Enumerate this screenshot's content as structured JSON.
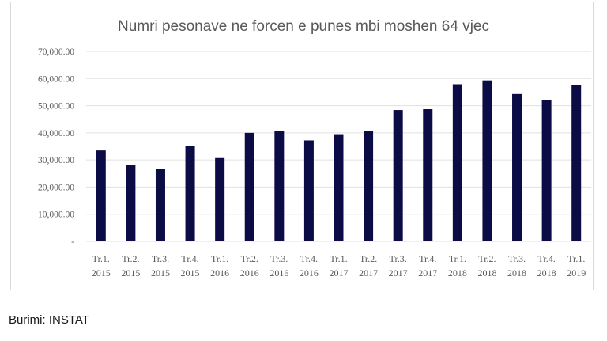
{
  "chart_data": {
    "type": "bar",
    "title": "Numri pesonave ne forcen e punes mbi moshen 64 vjec",
    "xlabel": "",
    "ylabel": "",
    "categories": [
      [
        "Tr.1.",
        "2015"
      ],
      [
        "Tr.2.",
        "2015"
      ],
      [
        "Tr.3.",
        "2015"
      ],
      [
        "Tr.4.",
        "2015"
      ],
      [
        "Tr.1.",
        "2016"
      ],
      [
        "Tr.2.",
        "2016"
      ],
      [
        "Tr.3.",
        "2016"
      ],
      [
        "Tr.4.",
        "2016"
      ],
      [
        "Tr.1.",
        "2017"
      ],
      [
        "Tr.2.",
        "2017"
      ],
      [
        "Tr.3.",
        "2017"
      ],
      [
        "Tr.4.",
        "2017"
      ],
      [
        "Tr.1.",
        "2018"
      ],
      [
        "Tr.2.",
        "2018"
      ],
      [
        "Tr.3.",
        "2018"
      ],
      [
        "Tr.4.",
        "2018"
      ],
      [
        "Tr.1.",
        "2019"
      ]
    ],
    "values": [
      33500,
      28000,
      26600,
      35200,
      30700,
      40000,
      40600,
      37200,
      39500,
      40800,
      48400,
      48700,
      57900,
      59300,
      54300,
      52200,
      57700
    ],
    "ylim": [
      0,
      70000
    ],
    "yticks": [
      0,
      10000,
      20000,
      30000,
      40000,
      50000,
      60000,
      70000
    ],
    "ytick_labels": [
      "-",
      "10,000.00",
      "20,000.00",
      "30,000.00",
      "40,000.00",
      "50,000.00",
      "60,000.00",
      "70,000.00"
    ],
    "grid": true,
    "legend": "none",
    "bar_color": "#0b0c45",
    "grid_color": "#e0e0e0"
  },
  "source": "Burimi: INSTAT"
}
